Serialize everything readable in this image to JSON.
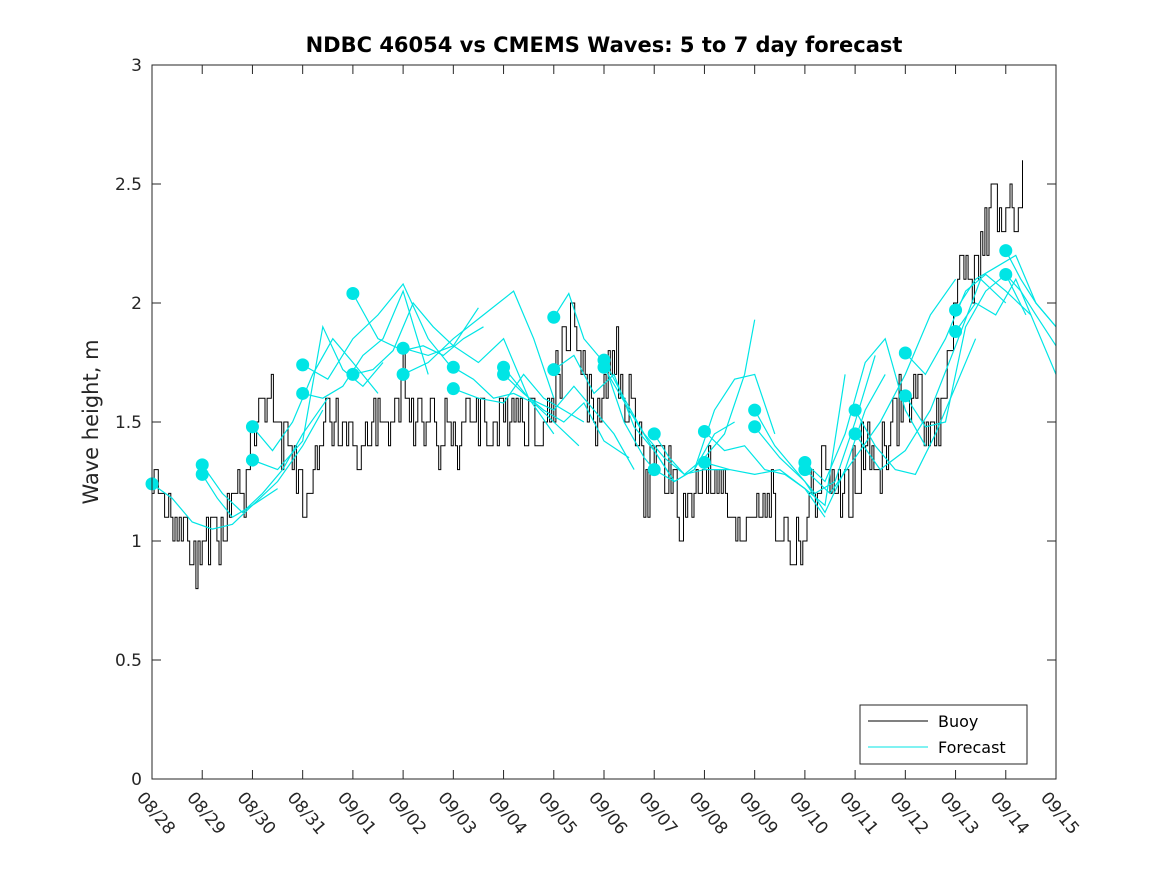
{
  "chart_data": {
    "type": "line",
    "title": "NDBC 46054 vs CMEMS Waves: 5 to 7 day forecast",
    "ylabel": "Wave height, m",
    "xlabel": "",
    "ylim": [
      0,
      3
    ],
    "xlim_days": [
      0,
      18
    ],
    "y_ticks": [
      0,
      0.5,
      1,
      1.5,
      2,
      2.5,
      3
    ],
    "y_tick_labels": [
      "0",
      "0.5",
      "1",
      "1.5",
      "2",
      "2.5",
      "3"
    ],
    "x_tick_labels": [
      "08/28",
      "08/29",
      "08/30",
      "08/31",
      "09/01",
      "09/02",
      "09/03",
      "09/04",
      "09/05",
      "09/06",
      "09/07",
      "09/08",
      "09/09",
      "09/10",
      "09/11",
      "09/12",
      "09/13",
      "09/14",
      "09/15"
    ],
    "colors": {
      "buoy": "#000000",
      "forecast": "#00e5e5",
      "axes": "#262626"
    },
    "legend": {
      "position": "bottom-right",
      "entries": [
        {
          "name": "Buoy",
          "color": "#000000"
        },
        {
          "name": "Forecast",
          "color": "#00e5e5"
        }
      ]
    },
    "buoy_control_points": [
      [
        0,
        1.2
      ],
      [
        0.2,
        1.25
      ],
      [
        0.4,
        1.1
      ],
      [
        0.6,
        1.0
      ],
      [
        0.7,
        0.9
      ],
      [
        0.75,
        0.8
      ],
      [
        0.9,
        1.0
      ],
      [
        1.1,
        1.0
      ],
      [
        1.3,
        1.05
      ],
      [
        1.5,
        1.1
      ],
      [
        1.7,
        1.2
      ],
      [
        1.9,
        1.3
      ],
      [
        2.0,
        1.45
      ],
      [
        2.2,
        1.6
      ],
      [
        2.4,
        1.55
      ],
      [
        2.6,
        1.4
      ],
      [
        2.8,
        1.3
      ],
      [
        3.0,
        1.2
      ],
      [
        3.2,
        1.35
      ],
      [
        3.4,
        1.5
      ],
      [
        3.6,
        1.5
      ],
      [
        3.8,
        1.45
      ],
      [
        4.0,
        1.4
      ],
      [
        4.2,
        1.35
      ],
      [
        4.4,
        1.45
      ],
      [
        4.6,
        1.5
      ],
      [
        4.8,
        1.45
      ],
      [
        5.0,
        1.8
      ],
      [
        5.1,
        1.5
      ],
      [
        5.3,
        1.45
      ],
      [
        5.5,
        1.55
      ],
      [
        5.7,
        1.45
      ],
      [
        5.9,
        1.5
      ],
      [
        6.1,
        1.4
      ],
      [
        6.3,
        1.5
      ],
      [
        6.5,
        1.55
      ],
      [
        6.7,
        1.45
      ],
      [
        7.0,
        1.5
      ],
      [
        7.2,
        1.6
      ],
      [
        7.4,
        1.55
      ],
      [
        7.6,
        1.5
      ],
      [
        7.8,
        1.45
      ],
      [
        8.0,
        1.6
      ],
      [
        8.2,
        1.85
      ],
      [
        8.4,
        1.95
      ],
      [
        8.6,
        1.65
      ],
      [
        8.8,
        1.5
      ],
      [
        9.0,
        1.65
      ],
      [
        9.2,
        1.8
      ],
      [
        9.4,
        1.65
      ],
      [
        9.6,
        1.45
      ],
      [
        9.8,
        1.2
      ],
      [
        10.0,
        1.35
      ],
      [
        10.2,
        1.3
      ],
      [
        10.4,
        1.15
      ],
      [
        10.6,
        1.1
      ],
      [
        10.8,
        1.2
      ],
      [
        11.0,
        1.3
      ],
      [
        11.2,
        1.25
      ],
      [
        11.4,
        1.15
      ],
      [
        11.6,
        1.0
      ],
      [
        11.8,
        1.1
      ],
      [
        12.0,
        1.2
      ],
      [
        12.2,
        1.2
      ],
      [
        12.4,
        1.1
      ],
      [
        12.6,
        1.0
      ],
      [
        12.8,
        0.95
      ],
      [
        13.0,
        1.05
      ],
      [
        13.2,
        1.2
      ],
      [
        13.4,
        1.3
      ],
      [
        13.6,
        1.2
      ],
      [
        13.8,
        1.2
      ],
      [
        14.0,
        1.3
      ],
      [
        14.2,
        1.35
      ],
      [
        14.4,
        1.3
      ],
      [
        14.6,
        1.4
      ],
      [
        14.8,
        1.5
      ],
      [
        15.0,
        1.55
      ],
      [
        15.2,
        1.6
      ],
      [
        15.4,
        1.55
      ],
      [
        15.6,
        1.5
      ],
      [
        15.8,
        1.75
      ],
      [
        16.0,
        2.0
      ],
      [
        16.2,
        2.2
      ],
      [
        16.4,
        2.1
      ],
      [
        16.6,
        2.3
      ],
      [
        16.8,
        2.4
      ],
      [
        17.0,
        2.35
      ],
      [
        17.2,
        2.4
      ],
      [
        17.35,
        2.45
      ]
    ],
    "forecast_series": [
      {
        "x": [
          0.0,
          0.4,
          0.8,
          1.2,
          1.6,
          2.0,
          2.5
        ],
        "y": [
          1.24,
          1.18,
          1.08,
          1.05,
          1.07,
          1.15,
          1.22
        ]
      },
      {
        "x": [
          1.0,
          1.4,
          1.8,
          2.2,
          2.6,
          3.0,
          3.5
        ],
        "y": [
          1.32,
          1.2,
          1.12,
          1.2,
          1.3,
          1.45,
          1.6
        ]
      },
      {
        "x": [
          1.0,
          1.3,
          1.6,
          2.0,
          2.5,
          3.0,
          3.4
        ],
        "y": [
          1.28,
          1.18,
          1.1,
          1.15,
          1.25,
          1.4,
          1.55
        ]
      },
      {
        "x": [
          2.0,
          2.4,
          2.8,
          3.2,
          3.6,
          4.0,
          4.5
        ],
        "y": [
          1.48,
          1.38,
          1.5,
          1.7,
          1.85,
          1.75,
          1.62
        ]
      },
      {
        "x": [
          2.0,
          2.5,
          3.0,
          3.4,
          3.8,
          4.2,
          4.6
        ],
        "y": [
          1.34,
          1.3,
          1.42,
          1.9,
          1.72,
          1.65,
          1.75
        ]
      },
      {
        "x": [
          3.0,
          3.5,
          4.0,
          4.5,
          5.0,
          5.5,
          6.0
        ],
        "y": [
          1.74,
          1.68,
          1.85,
          1.95,
          2.08,
          1.85,
          1.72
        ]
      },
      {
        "x": [
          3.0,
          3.4,
          3.8,
          4.2,
          4.6,
          5.0,
          5.5
        ],
        "y": [
          1.62,
          1.6,
          1.65,
          1.78,
          1.85,
          2.05,
          1.7
        ]
      },
      {
        "x": [
          4.0,
          4.5,
          5.0,
          5.4,
          5.8,
          6.2,
          6.6
        ],
        "y": [
          2.04,
          1.85,
          1.8,
          1.82,
          1.78,
          1.85,
          1.9
        ]
      },
      {
        "x": [
          4.0,
          4.4,
          4.8,
          5.2,
          5.6,
          6.0,
          6.5
        ],
        "y": [
          1.7,
          1.72,
          1.8,
          2.0,
          1.9,
          1.82,
          1.98
        ]
      },
      {
        "x": [
          5.0,
          5.5,
          6.0,
          6.5,
          7.0,
          7.5,
          8.0
        ],
        "y": [
          1.81,
          1.78,
          1.82,
          1.75,
          1.85,
          1.6,
          1.45
        ]
      },
      {
        "x": [
          5.0,
          5.5,
          6.0,
          6.6,
          7.2,
          7.6,
          8.0
        ],
        "y": [
          1.7,
          1.75,
          1.85,
          1.95,
          2.05,
          1.85,
          1.6
        ]
      },
      {
        "x": [
          6.0,
          6.4,
          6.8,
          7.2,
          7.6,
          8.0,
          8.5
        ],
        "y": [
          1.73,
          1.68,
          1.6,
          1.62,
          1.58,
          1.5,
          1.4
        ]
      },
      {
        "x": [
          6.0,
          6.5,
          7.0,
          7.4,
          7.8,
          8.2,
          8.6
        ],
        "y": [
          1.64,
          1.6,
          1.58,
          1.7,
          1.6,
          1.55,
          1.5
        ]
      },
      {
        "x": [
          7.0,
          7.5,
          8.0,
          8.4,
          8.8,
          9.2,
          9.6
        ],
        "y": [
          1.73,
          1.6,
          1.55,
          1.65,
          1.55,
          1.45,
          1.3
        ]
      },
      {
        "x": [
          7.0,
          7.4,
          7.8,
          8.2,
          8.6,
          9.0,
          9.5
        ],
        "y": [
          1.7,
          1.62,
          1.55,
          1.5,
          1.58,
          1.42,
          1.35
        ]
      },
      {
        "x": [
          8.0,
          8.3,
          8.6,
          9.0,
          9.4,
          9.8,
          10.0
        ],
        "y": [
          1.94,
          2.04,
          1.85,
          1.75,
          1.5,
          1.35,
          1.3
        ]
      },
      {
        "x": [
          8.0,
          8.4,
          8.8,
          9.2,
          9.6,
          10.0,
          10.4
        ],
        "y": [
          1.72,
          1.78,
          1.62,
          1.7,
          1.48,
          1.38,
          1.25
        ]
      },
      {
        "x": [
          9.0,
          9.4,
          9.8,
          10.2,
          10.6,
          11.0,
          11.5
        ],
        "y": [
          1.76,
          1.6,
          1.45,
          1.35,
          1.28,
          1.3,
          1.3
        ]
      },
      {
        "x": [
          9.0,
          9.5,
          10.0,
          10.4,
          10.8,
          11.2,
          11.6
        ],
        "y": [
          1.73,
          1.55,
          1.38,
          1.25,
          1.3,
          1.45,
          1.5
        ]
      },
      {
        "x": [
          10.0,
          10.3,
          10.6,
          11.0,
          11.4,
          11.8,
          12.0
        ],
        "y": [
          1.45,
          1.35,
          1.28,
          1.35,
          1.45,
          1.7,
          1.93
        ]
      },
      {
        "x": [
          10.0,
          10.4,
          10.8,
          11.2,
          11.6,
          12.0,
          12.4
        ],
        "y": [
          1.3,
          1.25,
          1.3,
          1.55,
          1.68,
          1.7,
          1.45
        ]
      },
      {
        "x": [
          11.0,
          11.4,
          11.8,
          12.2,
          12.6,
          13.0,
          13.4
        ],
        "y": [
          1.46,
          1.38,
          1.4,
          1.3,
          1.28,
          1.22,
          1.1
        ]
      },
      {
        "x": [
          11.0,
          11.5,
          12.0,
          12.5,
          13.0,
          13.4,
          13.8
        ],
        "y": [
          1.33,
          1.3,
          1.28,
          1.3,
          1.22,
          1.15,
          1.7
        ]
      },
      {
        "x": [
          12.0,
          12.4,
          12.8,
          13.2,
          13.6,
          14.0,
          14.4
        ],
        "y": [
          1.55,
          1.4,
          1.3,
          1.2,
          1.25,
          1.5,
          1.78
        ]
      },
      {
        "x": [
          12.0,
          12.5,
          13.0,
          13.4,
          13.8,
          14.2,
          14.6
        ],
        "y": [
          1.48,
          1.35,
          1.25,
          1.12,
          1.3,
          1.55,
          1.7
        ]
      },
      {
        "x": [
          13.0,
          13.4,
          13.8,
          14.2,
          14.6,
          15.0,
          15.4
        ],
        "y": [
          1.33,
          1.25,
          1.45,
          1.75,
          1.85,
          1.55,
          1.4
        ]
      },
      {
        "x": [
          13.0,
          13.5,
          14.0,
          14.5,
          15.0,
          15.5,
          16.0
        ],
        "y": [
          1.3,
          1.2,
          1.35,
          1.5,
          1.7,
          1.95,
          2.1
        ]
      },
      {
        "x": [
          14.0,
          14.4,
          14.8,
          15.2,
          15.6,
          16.0,
          16.4
        ],
        "y": [
          1.55,
          1.4,
          1.3,
          1.28,
          1.45,
          1.65,
          1.85
        ]
      },
      {
        "x": [
          14.0,
          14.5,
          15.0,
          15.5,
          16.0,
          16.5,
          17.0
        ],
        "y": [
          1.45,
          1.3,
          1.38,
          1.55,
          1.82,
          2.1,
          2.0
        ]
      },
      {
        "x": [
          15.0,
          15.4,
          15.8,
          16.2,
          16.6,
          17.0,
          17.5
        ],
        "y": [
          1.79,
          1.7,
          1.85,
          2.05,
          2.12,
          2.05,
          1.95
        ]
      },
      {
        "x": [
          15.0,
          15.4,
          15.8,
          16.2,
          16.6,
          17.0,
          17.4
        ],
        "y": [
          1.61,
          1.48,
          1.5,
          1.9,
          2.05,
          2.12,
          1.95
        ]
      },
      {
        "x": [
          16.0,
          16.4,
          16.8,
          17.2,
          17.6,
          18.0
        ],
        "y": [
          1.97,
          2.1,
          2.15,
          2.2,
          2.0,
          1.9
        ]
      },
      {
        "x": [
          16.0,
          16.4,
          16.8,
          17.2,
          17.6,
          18.0
        ],
        "y": [
          1.88,
          2.0,
          1.95,
          2.1,
          1.9,
          1.7
        ]
      },
      {
        "x": [
          17.0,
          17.3,
          17.6,
          18.0
        ],
        "y": [
          2.22,
          2.1,
          2.0,
          1.9
        ]
      },
      {
        "x": [
          17.0,
          17.3,
          17.6,
          18.0
        ],
        "y": [
          2.12,
          2.05,
          1.95,
          1.82
        ]
      }
    ],
    "forecast_markers": [
      [
        0.0,
        1.24
      ],
      [
        1.0,
        1.32
      ],
      [
        1.0,
        1.28
      ],
      [
        2.0,
        1.48
      ],
      [
        2.0,
        1.34
      ],
      [
        3.0,
        1.74
      ],
      [
        3.0,
        1.62
      ],
      [
        4.0,
        2.04
      ],
      [
        4.0,
        1.7
      ],
      [
        5.0,
        1.81
      ],
      [
        5.0,
        1.7
      ],
      [
        6.0,
        1.73
      ],
      [
        6.0,
        1.64
      ],
      [
        7.0,
        1.73
      ],
      [
        7.0,
        1.7
      ],
      [
        8.0,
        1.94
      ],
      [
        8.0,
        1.72
      ],
      [
        9.0,
        1.76
      ],
      [
        9.0,
        1.73
      ],
      [
        10.0,
        1.45
      ],
      [
        10.0,
        1.3
      ],
      [
        11.0,
        1.46
      ],
      [
        11.0,
        1.33
      ],
      [
        12.0,
        1.55
      ],
      [
        12.0,
        1.48
      ],
      [
        13.0,
        1.33
      ],
      [
        13.0,
        1.3
      ],
      [
        14.0,
        1.55
      ],
      [
        14.0,
        1.45
      ],
      [
        15.0,
        1.79
      ],
      [
        15.0,
        1.61
      ],
      [
        16.0,
        1.97
      ],
      [
        16.0,
        1.88
      ],
      [
        17.0,
        2.22
      ],
      [
        17.0,
        2.12
      ]
    ]
  }
}
